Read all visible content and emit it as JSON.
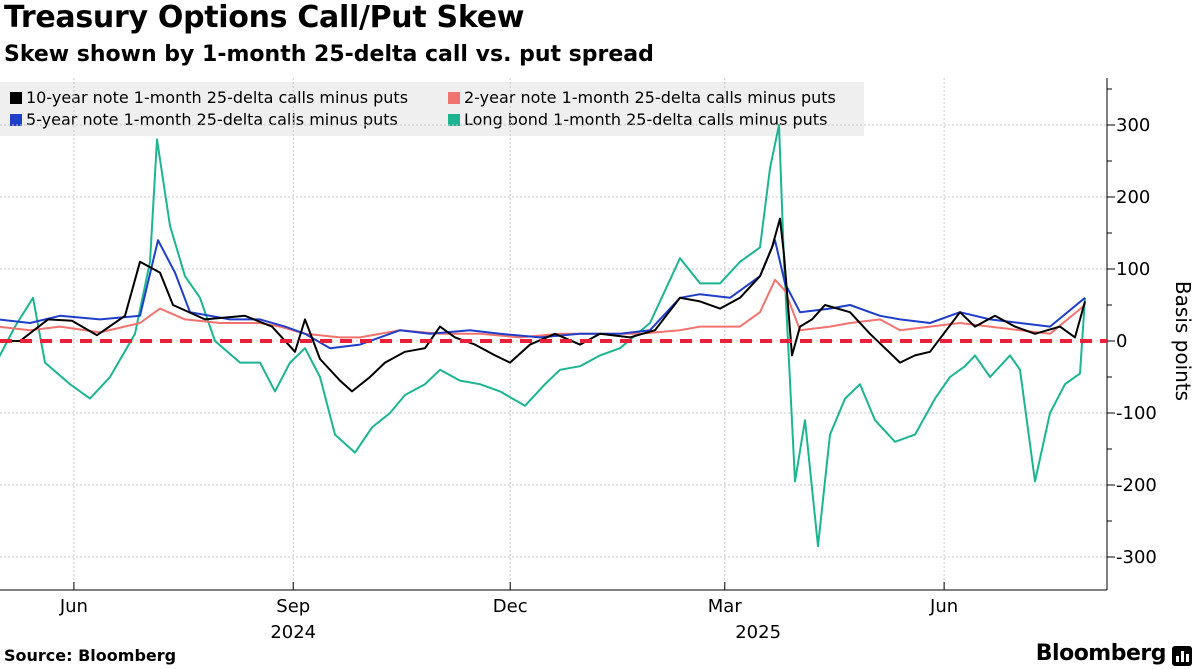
{
  "header": {
    "title": "Treasury Options Call/Put Skew",
    "subtitle": "Skew shown by 1-month 25-delta call vs. put spread"
  },
  "footer": {
    "source": "Source: Bloomberg",
    "brand": "Bloomberg"
  },
  "chart_data": {
    "type": "line",
    "x_start": "2024-05-01",
    "x_end": "2025-07-31",
    "xlim": [
      "2024-05-01",
      "2025-08-10"
    ],
    "ylim": [
      -350,
      360
    ],
    "yticks": [
      -300,
      -200,
      -100,
      0,
      100,
      200,
      300
    ],
    "ytick_labels": [
      "-300",
      "-200",
      "-100",
      "0",
      "100",
      "200",
      "300"
    ],
    "ylabel": "Basis points",
    "axis_position": "right",
    "grid": true,
    "x_month_labels": [
      {
        "date": "2024-06-01",
        "label": "Jun"
      },
      {
        "date": "2024-09-01",
        "label": "Sep"
      },
      {
        "date": "2024-12-01",
        "label": "Dec"
      },
      {
        "date": "2025-03-01",
        "label": "Mar"
      },
      {
        "date": "2025-06-01",
        "label": "Jun"
      }
    ],
    "x_year_labels": [
      {
        "date": "2024-09-01",
        "label": "2024"
      },
      {
        "date": "2025-03-15",
        "label": "2025"
      }
    ],
    "reference_line": {
      "y": 0,
      "color": "#e8203a",
      "style": "dashed"
    },
    "legend_position": "top-left",
    "series": [
      {
        "name": "10-year note 1-month 25-delta calls minus puts",
        "color": "#000000",
        "values": [
          [
            -2,
            0
          ],
          [
            20,
            0
          ],
          [
            48,
            30
          ],
          [
            72,
            28
          ],
          [
            97,
            8
          ],
          [
            125,
            35
          ],
          [
            140,
            110
          ],
          [
            160,
            95
          ],
          [
            173,
            50
          ],
          [
            205,
            30
          ],
          [
            245,
            35
          ],
          [
            272,
            20
          ],
          [
            295,
            -15
          ],
          [
            305,
            30
          ],
          [
            320,
            -25
          ],
          [
            340,
            -55
          ],
          [
            352,
            -70
          ],
          [
            370,
            -50
          ],
          [
            385,
            -30
          ],
          [
            405,
            -15
          ],
          [
            425,
            -10
          ],
          [
            440,
            20
          ],
          [
            455,
            5
          ],
          [
            475,
            -5
          ],
          [
            495,
            -20
          ],
          [
            510,
            -30
          ],
          [
            530,
            -5
          ],
          [
            555,
            10
          ],
          [
            580,
            -5
          ],
          [
            600,
            10
          ],
          [
            630,
            5
          ],
          [
            655,
            15
          ],
          [
            680,
            60
          ],
          [
            700,
            55
          ],
          [
            720,
            45
          ],
          [
            740,
            60
          ],
          [
            760,
            90
          ],
          [
            772,
            130
          ],
          [
            780,
            170
          ],
          [
            784,
            120
          ],
          [
            792,
            -20
          ],
          [
            800,
            20
          ],
          [
            812,
            30
          ],
          [
            825,
            50
          ],
          [
            850,
            40
          ],
          [
            870,
            10
          ],
          [
            885,
            -10
          ],
          [
            900,
            -30
          ],
          [
            915,
            -20
          ],
          [
            930,
            -15
          ],
          [
            960,
            40
          ],
          [
            975,
            20
          ],
          [
            995,
            35
          ],
          [
            1015,
            20
          ],
          [
            1035,
            10
          ],
          [
            1060,
            20
          ],
          [
            1075,
            5
          ],
          [
            1085,
            55
          ]
        ]
      },
      {
        "name": "2-year note 1-month 25-delta calls minus puts",
        "color": "#f07370",
        "values": [
          [
            -2,
            20
          ],
          [
            30,
            15
          ],
          [
            60,
            20
          ],
          [
            100,
            12
          ],
          [
            140,
            25
          ],
          [
            160,
            45
          ],
          [
            185,
            30
          ],
          [
            220,
            25
          ],
          [
            260,
            25
          ],
          [
            280,
            20
          ],
          [
            305,
            10
          ],
          [
            340,
            5
          ],
          [
            360,
            5
          ],
          [
            400,
            15
          ],
          [
            440,
            10
          ],
          [
            480,
            10
          ],
          [
            520,
            5
          ],
          [
            560,
            10
          ],
          [
            600,
            10
          ],
          [
            640,
            10
          ],
          [
            680,
            15
          ],
          [
            700,
            20
          ],
          [
            720,
            20
          ],
          [
            740,
            20
          ],
          [
            760,
            40
          ],
          [
            775,
            85
          ],
          [
            785,
            70
          ],
          [
            800,
            15
          ],
          [
            830,
            20
          ],
          [
            850,
            25
          ],
          [
            880,
            30
          ],
          [
            900,
            15
          ],
          [
            930,
            20
          ],
          [
            960,
            25
          ],
          [
            990,
            20
          ],
          [
            1020,
            15
          ],
          [
            1050,
            10
          ],
          [
            1085,
            50
          ]
        ]
      },
      {
        "name": "5-year note 1-month 25-delta calls minus puts",
        "color": "#1f3ec9",
        "values": [
          [
            -2,
            30
          ],
          [
            30,
            25
          ],
          [
            60,
            35
          ],
          [
            100,
            30
          ],
          [
            140,
            35
          ],
          [
            158,
            140
          ],
          [
            175,
            95
          ],
          [
            190,
            40
          ],
          [
            230,
            30
          ],
          [
            260,
            30
          ],
          [
            285,
            20
          ],
          [
            305,
            10
          ],
          [
            330,
            -10
          ],
          [
            360,
            -5
          ],
          [
            400,
            15
          ],
          [
            430,
            10
          ],
          [
            470,
            15
          ],
          [
            500,
            10
          ],
          [
            540,
            5
          ],
          [
            580,
            10
          ],
          [
            620,
            10
          ],
          [
            650,
            15
          ],
          [
            680,
            60
          ],
          [
            700,
            65
          ],
          [
            730,
            60
          ],
          [
            760,
            90
          ],
          [
            775,
            140
          ],
          [
            785,
            80
          ],
          [
            800,
            40
          ],
          [
            830,
            45
          ],
          [
            850,
            50
          ],
          [
            880,
            35
          ],
          [
            900,
            30
          ],
          [
            930,
            25
          ],
          [
            960,
            40
          ],
          [
            990,
            30
          ],
          [
            1020,
            25
          ],
          [
            1050,
            20
          ],
          [
            1085,
            60
          ]
        ]
      },
      {
        "name": "Long bond 1-month 25-delta calls minus puts",
        "color": "#1cb591",
        "values": [
          [
            -2,
            -25
          ],
          [
            15,
            20
          ],
          [
            33,
            60
          ],
          [
            45,
            -30
          ],
          [
            70,
            -60
          ],
          [
            90,
            -80
          ],
          [
            110,
            -50
          ],
          [
            135,
            10
          ],
          [
            150,
            110
          ],
          [
            157,
            280
          ],
          [
            170,
            160
          ],
          [
            185,
            90
          ],
          [
            200,
            60
          ],
          [
            215,
            0
          ],
          [
            240,
            -30
          ],
          [
            260,
            -30
          ],
          [
            275,
            -70
          ],
          [
            290,
            -30
          ],
          [
            305,
            -10
          ],
          [
            320,
            -50
          ],
          [
            335,
            -130
          ],
          [
            355,
            -155
          ],
          [
            372,
            -120
          ],
          [
            390,
            -100
          ],
          [
            405,
            -75
          ],
          [
            425,
            -60
          ],
          [
            440,
            -40
          ],
          [
            460,
            -55
          ],
          [
            480,
            -60
          ],
          [
            500,
            -70
          ],
          [
            525,
            -90
          ],
          [
            545,
            -60
          ],
          [
            560,
            -40
          ],
          [
            580,
            -35
          ],
          [
            600,
            -20
          ],
          [
            620,
            -10
          ],
          [
            650,
            25
          ],
          [
            680,
            115
          ],
          [
            700,
            80
          ],
          [
            720,
            80
          ],
          [
            740,
            110
          ],
          [
            760,
            130
          ],
          [
            770,
            240
          ],
          [
            779,
            300
          ],
          [
            784,
            110
          ],
          [
            795,
            -195
          ],
          [
            805,
            -110
          ],
          [
            818,
            -285
          ],
          [
            830,
            -130
          ],
          [
            845,
            -80
          ],
          [
            860,
            -60
          ],
          [
            875,
            -110
          ],
          [
            895,
            -140
          ],
          [
            915,
            -130
          ],
          [
            935,
            -80
          ],
          [
            950,
            -50
          ],
          [
            965,
            -35
          ],
          [
            975,
            -20
          ],
          [
            990,
            -50
          ],
          [
            1010,
            -20
          ],
          [
            1020,
            -40
          ],
          [
            1035,
            -195
          ],
          [
            1050,
            -100
          ],
          [
            1065,
            -60
          ],
          [
            1080,
            -45
          ],
          [
            1085,
            60
          ]
        ]
      }
    ]
  }
}
